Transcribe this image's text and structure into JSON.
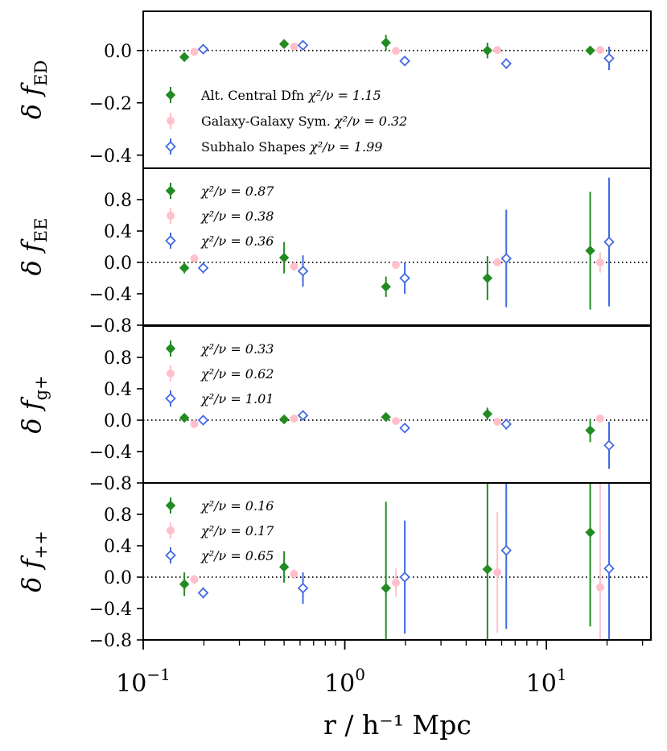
{
  "chart_data": {
    "type": "scatter",
    "xlabel": "r / h⁻¹ Mpc",
    "xscale": "log",
    "xlim": [
      0.1,
      33
    ],
    "xticks": [
      {
        "value": 0.1,
        "base": "10",
        "exp": "−1"
      },
      {
        "value": 1,
        "base": "10",
        "exp": "0"
      },
      {
        "value": 10,
        "base": "10",
        "exp": "1"
      }
    ],
    "series_info": [
      {
        "name": "Alt. Central Dfn",
        "color": "#228b22",
        "marker": "diamond-filled",
        "x_offset": 0.0
      },
      {
        "name": "Galaxy-Galaxy Sym.",
        "color": "#ffc0cb",
        "marker": "circle-filled",
        "x_offset": 0.12
      },
      {
        "name": "Subhalo Shapes",
        "color": "#4169e1",
        "marker": "diamond-open",
        "x_offset": 0.24
      }
    ],
    "x_bins": [
      0.16,
      0.5,
      1.6,
      5.1,
      16.5
    ],
    "panels": [
      {
        "ylabel_main": "δ f",
        "ylabel_sub": "ED",
        "ylim": [
          -0.45,
          0.15
        ],
        "yticks": [
          {
            "value": 0.0,
            "label": "0.0"
          },
          {
            "value": -0.2,
            "label": "−0.2"
          },
          {
            "value": -0.4,
            "label": "−0.4"
          }
        ],
        "legend_full": true,
        "series": [
          {
            "name": "Alt. Central Dfn",
            "chi2": "1.15",
            "y": [
              -0.025,
              0.025,
              0.03,
              0.0,
              0.0
            ],
            "err": [
              0.01,
              0.01,
              0.03,
              0.03,
              0.01
            ]
          },
          {
            "name": "Galaxy-Galaxy Sym.",
            "chi2": "0.32",
            "y": [
              -0.005,
              0.015,
              -0.002,
              0.002,
              0.002
            ],
            "err": [
              0.008,
              0.01,
              0.01,
              0.01,
              0.01
            ]
          },
          {
            "name": "Subhalo Shapes",
            "chi2": "1.99",
            "y": [
              0.005,
              0.02,
              -0.04,
              -0.05,
              -0.03
            ],
            "err": [
              0.01,
              0.015,
              0.015,
              0.02,
              0.045
            ]
          }
        ]
      },
      {
        "ylabel_main": "δ f",
        "ylabel_sub": "EE",
        "ylim": [
          -0.8,
          1.2
        ],
        "yticks": [
          {
            "value": 0.8,
            "label": "0.8"
          },
          {
            "value": 0.4,
            "label": "0.4"
          },
          {
            "value": 0.0,
            "label": "0.0"
          },
          {
            "value": -0.4,
            "label": "−0.4"
          },
          {
            "value": -0.8,
            "label": "−0.8"
          }
        ],
        "legend_full": false,
        "series": [
          {
            "name": "Alt. Central Dfn",
            "chi2": "0.87",
            "y": [
              -0.07,
              0.06,
              -0.31,
              -0.2,
              0.15
            ],
            "err": [
              0.07,
              0.2,
              0.13,
              0.28,
              0.75
            ]
          },
          {
            "name": "Galaxy-Galaxy Sym.",
            "chi2": "0.38",
            "y": [
              0.05,
              -0.05,
              -0.03,
              0.0,
              0.0
            ],
            "err": [
              0.05,
              0.06,
              0.05,
              0.05,
              0.13
            ]
          },
          {
            "name": "Subhalo Shapes",
            "chi2": "0.36",
            "y": [
              -0.07,
              -0.11,
              -0.2,
              0.05,
              0.26
            ],
            "err": [
              0.07,
              0.2,
              0.2,
              0.62,
              0.82
            ]
          }
        ]
      },
      {
        "ylabel_main": "δ f",
        "ylabel_sub": "g+",
        "ylim": [
          -0.8,
          1.2
        ],
        "yticks": [
          {
            "value": 0.8,
            "label": "0.8"
          },
          {
            "value": 0.4,
            "label": "0.4"
          },
          {
            "value": 0.0,
            "label": "0.0"
          },
          {
            "value": -0.4,
            "label": "−0.4"
          },
          {
            "value": -0.8,
            "label": "−0.8"
          }
        ],
        "legend_full": false,
        "series": [
          {
            "name": "Alt. Central Dfn",
            "chi2": "0.33",
            "y": [
              0.03,
              0.01,
              0.04,
              0.08,
              -0.13
            ],
            "err": [
              0.04,
              0.04,
              0.05,
              0.08,
              0.15
            ]
          },
          {
            "name": "Galaxy-Galaxy Sym.",
            "chi2": "0.62",
            "y": [
              -0.05,
              0.02,
              -0.01,
              -0.02,
              0.02
            ],
            "err": [
              0.04,
              0.04,
              0.04,
              0.04,
              0.05
            ]
          },
          {
            "name": "Subhalo Shapes",
            "chi2": "1.01",
            "y": [
              0.0,
              0.06,
              -0.1,
              -0.05,
              -0.32
            ],
            "err": [
              0.04,
              0.06,
              0.06,
              0.07,
              0.3
            ]
          }
        ]
      },
      {
        "ylabel_main": "δ f",
        "ylabel_sub": "++",
        "ylim": [
          -0.8,
          1.2
        ],
        "yticks": [
          {
            "value": 0.8,
            "label": "0.8"
          },
          {
            "value": 0.4,
            "label": "0.4"
          },
          {
            "value": 0.0,
            "label": "0.0"
          },
          {
            "value": -0.4,
            "label": "−0.4"
          },
          {
            "value": -0.8,
            "label": "−0.8"
          }
        ],
        "legend_full": false,
        "series": [
          {
            "name": "Alt. Central Dfn",
            "chi2": "0.16",
            "y": [
              -0.09,
              0.13,
              -0.14,
              0.1,
              0.57
            ],
            "err": [
              0.15,
              0.2,
              1.1,
              1.2,
              1.2
            ]
          },
          {
            "name": "Galaxy-Galaxy Sym.",
            "chi2": "0.17",
            "y": [
              -0.03,
              0.04,
              -0.07,
              0.06,
              -0.13
            ],
            "err": [
              0.06,
              0.06,
              0.18,
              0.77,
              1.4
            ]
          },
          {
            "name": "Subhalo Shapes",
            "chi2": "0.65",
            "y": [
              -0.2,
              -0.14,
              0.0,
              0.34,
              0.11
            ],
            "err": [
              0.07,
              0.2,
              0.72,
              1.0,
              1.3
            ]
          }
        ]
      }
    ]
  }
}
